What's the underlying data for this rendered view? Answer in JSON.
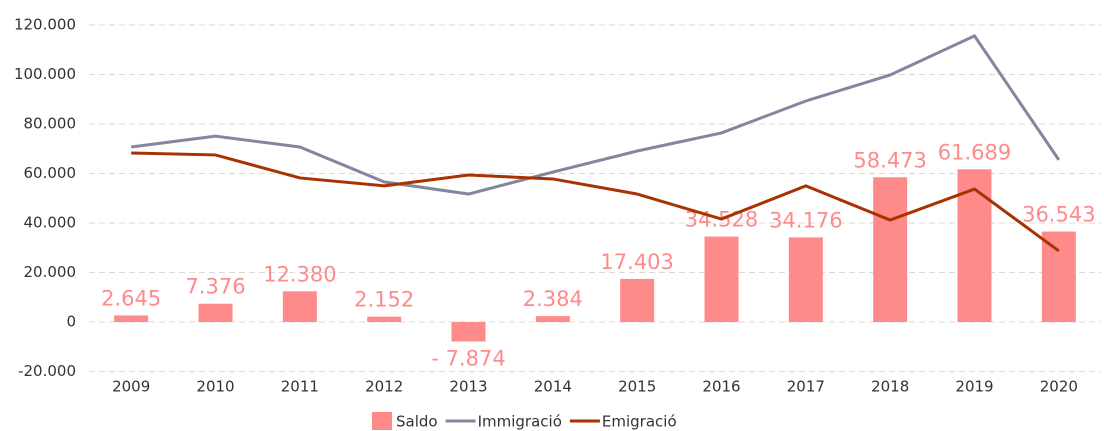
{
  "chart_data": {
    "type": "bar",
    "categories": [
      "2009",
      "2010",
      "2011",
      "2012",
      "2013",
      "2014",
      "2015",
      "2016",
      "2017",
      "2018",
      "2019",
      "2020"
    ],
    "series": [
      {
        "name": "Saldo",
        "type": "bar",
        "color": "#ff8a8a",
        "values": [
          2645,
          7376,
          12380,
          2152,
          -7874,
          2384,
          17403,
          34528,
          34176,
          58473,
          61689,
          36543
        ],
        "value_labels": [
          "2.645",
          "7.376",
          "12.380",
          "2.152",
          "- 7.874",
          "2.384",
          "17.403",
          "34.528",
          "34.176",
          "58.473",
          "61.689",
          "36.543"
        ]
      },
      {
        "name": "Immigració",
        "type": "line",
        "color": "#8286a0",
        "values": [
          70700,
          75100,
          70700,
          56600,
          51700,
          60600,
          69100,
          76400,
          89300,
          99800,
          115600,
          65500
        ]
      },
      {
        "name": "Emigració",
        "type": "line",
        "color": "#a83200",
        "values": [
          68300,
          67500,
          58200,
          55000,
          59400,
          57800,
          51700,
          41600,
          55000,
          41200,
          53700,
          28700
        ]
      }
    ],
    "ylim": [
      -20000,
      120000
    ],
    "yticks": [
      {
        "value": -20000,
        "label": "-20.000"
      },
      0,
      {
        "value": 20000,
        "label": "20.000"
      },
      {
        "value": 40000,
        "label": "40.000"
      },
      {
        "value": 60000,
        "label": "60.000"
      },
      {
        "value": 80000,
        "label": "80.000"
      },
      {
        "value": 100000,
        "label": "100.000"
      },
      {
        "value": 120000,
        "label": "120.000"
      }
    ],
    "grid": true,
    "legend": "bottom"
  }
}
